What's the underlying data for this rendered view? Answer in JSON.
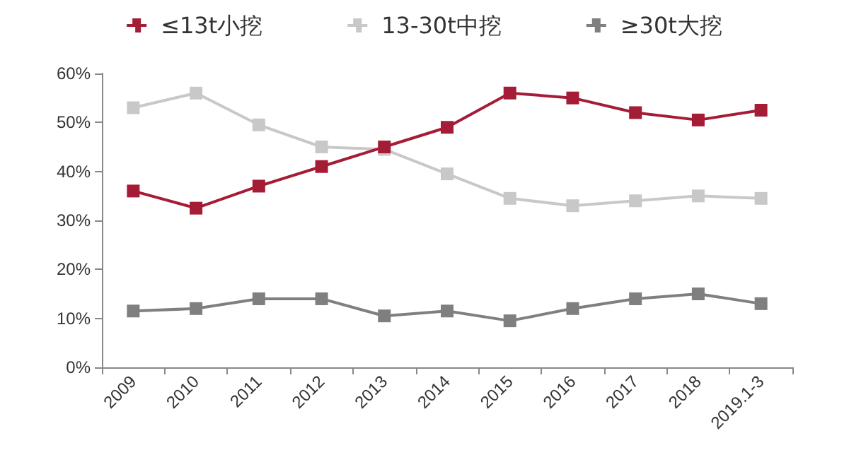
{
  "chart_data": {
    "type": "line",
    "categories": [
      "2009",
      "2010",
      "2011",
      "2012",
      "2013",
      "2014",
      "2015",
      "2016",
      "2017",
      "2018",
      "2019.1-3"
    ],
    "series": [
      {
        "name": "≤13t小挖",
        "color": "#a51c36",
        "values": [
          36,
          32.5,
          37,
          41,
          45,
          49,
          56,
          55,
          52,
          50.5,
          52.5
        ]
      },
      {
        "name": "13-30t中挖",
        "color": "#c8c8c8",
        "values": [
          53,
          56,
          49.5,
          45,
          44.5,
          39.5,
          34.5,
          33,
          34,
          35,
          34.5
        ]
      },
      {
        "name": "≥30t大挖",
        "color": "#7f7f7f",
        "values": [
          11.5,
          12,
          14,
          14,
          10.5,
          11.5,
          9.5,
          12,
          14,
          15,
          13
        ]
      }
    ],
    "ylim": [
      0,
      60
    ],
    "yticks": [
      {
        "value": 0,
        "label": "0%"
      },
      {
        "value": 10,
        "label": "10%"
      },
      {
        "value": 20,
        "label": "20%"
      },
      {
        "value": 30,
        "label": "30%"
      },
      {
        "value": 40,
        "label": "40%"
      },
      {
        "value": 50,
        "label": "50%"
      },
      {
        "value": 60,
        "label": "60%"
      }
    ],
    "legend": "top",
    "marker": "square",
    "line_style": "solid",
    "grid": false
  }
}
